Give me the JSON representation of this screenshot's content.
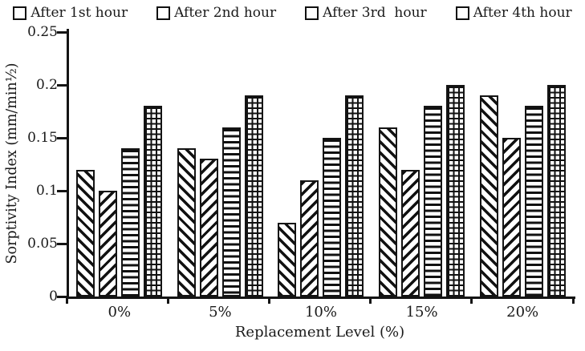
{
  "chart_data": {
    "type": "bar",
    "title": "",
    "categories": [
      "0%",
      "5%",
      "10%",
      "15%",
      "20%"
    ],
    "series": [
      {
        "name": "After 1st hour",
        "pattern": "diagonal-backslash",
        "values": [
          0.12,
          0.14,
          0.07,
          0.16,
          0.19
        ]
      },
      {
        "name": "After 2nd hour",
        "pattern": "diagonal-slash",
        "values": [
          0.1,
          0.13,
          0.11,
          0.12,
          0.15
        ]
      },
      {
        "name": "After 3rd  hour",
        "pattern": "horizontal-lines",
        "values": [
          0.14,
          0.16,
          0.15,
          0.18,
          0.18
        ]
      },
      {
        "name": "After 4th hour",
        "pattern": "grid",
        "values": [
          0.18,
          0.19,
          0.19,
          0.2,
          0.2
        ]
      }
    ],
    "xlabel": "Replacement Level (%)",
    "ylabel": "Sorptivity Index (mm/min½)",
    "ylim": [
      0,
      0.25
    ],
    "yticks": [
      {
        "value": 0,
        "label": "0"
      },
      {
        "value": 0.05,
        "label": "0.05"
      },
      {
        "value": 0.1,
        "label": "0.1"
      },
      {
        "value": 0.15,
        "label": "0.15"
      },
      {
        "value": 0.2,
        "label": "0.2"
      },
      {
        "value": 0.25,
        "label": "0.25"
      }
    ],
    "legend_position": "top",
    "grid": false,
    "bar_fill": "#ffffff",
    "ink_color": "#141414"
  }
}
